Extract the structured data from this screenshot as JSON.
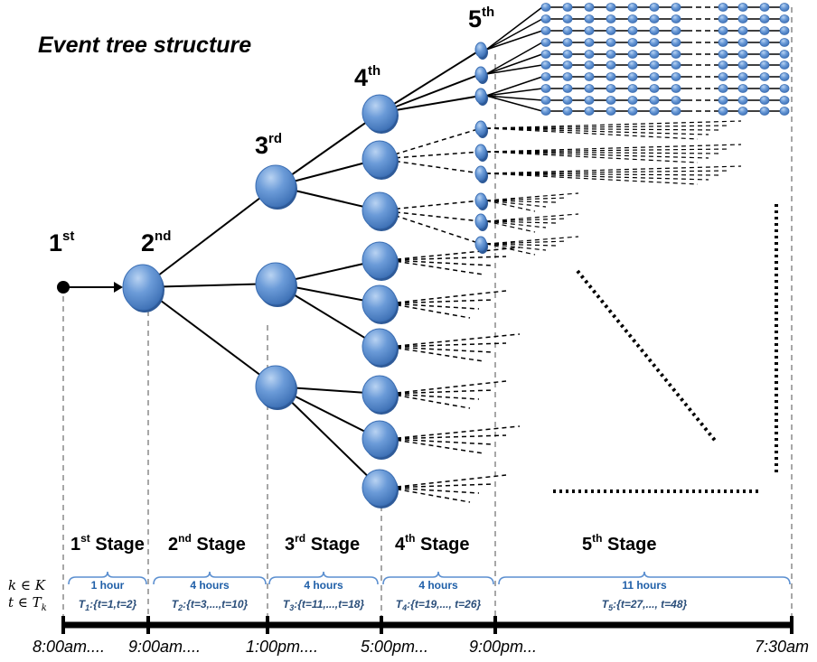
{
  "title": "Event tree structure",
  "ordinals": [
    {
      "num": "1",
      "sup": "st"
    },
    {
      "num": "2",
      "sup": "nd"
    },
    {
      "num": "3",
      "sup": "rd"
    },
    {
      "num": "4",
      "sup": "th"
    },
    {
      "num": "5",
      "sup": "th"
    }
  ],
  "stages": [
    {
      "num": "1",
      "sup": "st",
      "word": "Stage",
      "duration": "1 hour",
      "period_prefix": "T",
      "period_sub": "1",
      "period_set": ":{t=1,t=2}"
    },
    {
      "num": "2",
      "sup": "nd",
      "word": "Stage",
      "duration": "4 hours",
      "period_prefix": "T",
      "period_sub": "2",
      "period_set": ":{t=3,...,t=10}"
    },
    {
      "num": "3",
      "sup": "rd",
      "word": "Stage",
      "duration": "4 hours",
      "period_prefix": "T",
      "period_sub": "3",
      "period_set": ":{t=11,...,t=18}"
    },
    {
      "num": "4",
      "sup": "th",
      "word": "Stage",
      "duration": "4 hours",
      "period_prefix": "T",
      "period_sub": "4",
      "period_set": ":{t=19,..., t=26}"
    },
    {
      "num": "5",
      "sup": "th",
      "word": "Stage",
      "duration": "11 hours",
      "period_prefix": "T",
      "period_sub": "5",
      "period_set": ":{t=27,..., t=48}"
    }
  ],
  "math_labels": {
    "k_line": "k ∈ K",
    "t_line_main": "t ∈ T",
    "t_line_sub": "k"
  },
  "times": [
    "8:00am....",
    "9:00am....",
    "1:00pm....",
    "5:00pm...",
    "9:00pm...",
    "7:30am"
  ],
  "colors": {
    "node_fill": "#5b8fd0",
    "node_shadow": "#2e5a98",
    "bracket": "#5b8fd0",
    "period_text": "#2a4e7a"
  }
}
